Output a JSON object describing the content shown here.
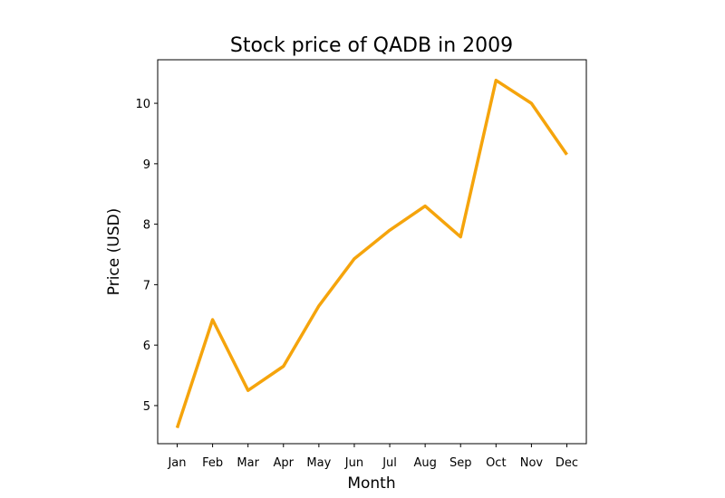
{
  "chart_data": {
    "type": "line",
    "title": "Stock price of QADB in 2009",
    "xlabel": "Month",
    "ylabel": "Price (USD)",
    "categories": [
      "Jan",
      "Feb",
      "Mar",
      "Apr",
      "May",
      "Jun",
      "Jul",
      "Aug",
      "Sep",
      "Oct",
      "Nov",
      "Dec"
    ],
    "series": [
      {
        "values": [
          4.63,
          6.42,
          5.25,
          5.65,
          6.65,
          7.43,
          7.9,
          8.3,
          7.79,
          10.38,
          10.0,
          9.15
        ]
      }
    ],
    "yticks": [
      5,
      6,
      7,
      8,
      9,
      10
    ],
    "ytick_labels": [
      "5",
      "6",
      "7",
      "8",
      "9",
      "10"
    ],
    "ylim": [
      4.37,
      10.72
    ],
    "grid": false,
    "line_color": "#f5a40c"
  }
}
